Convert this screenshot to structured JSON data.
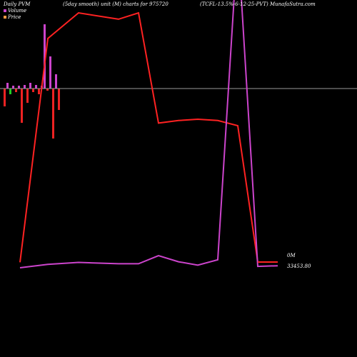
{
  "header": {
    "left": "Daily PVM",
    "middle": "(5day smooth) unit (M) charts for 975720",
    "right": "(TCFL-13.5%-6-12-25-PVT) MunafaSutra.com"
  },
  "legend": {
    "volume_label": "Volume",
    "volume_color": "#cc44cc",
    "price_label": "Price",
    "price_color": "#ff9944"
  },
  "labels": {
    "volume_end": "0M",
    "price_end": "33453.80"
  },
  "colors": {
    "background": "#000000",
    "volume_line": "#cc44cc",
    "price_line": "#ff2222",
    "baseline": "#9a9a9a",
    "bar_up": "#cc44cc",
    "bar_down": "#ee2222",
    "bar_green": "#22cc22"
  },
  "chart_data": {
    "type": "line",
    "grid": false,
    "legend_position": "top-left",
    "series": [
      {
        "name": "Price",
        "values": [
          33453.8,
          35200,
          35400,
          35350,
          35400,
          34540,
          34560,
          34570,
          34560,
          34520,
          33456,
          33456
        ]
      },
      {
        "name": "Volume",
        "values": [
          0,
          0.05,
          0.08,
          0.06,
          0.06,
          0.18,
          0.09,
          0.04,
          0.12,
          4.9,
          0.02,
          0.03
        ]
      }
    ],
    "bars": [
      {
        "type": "down",
        "value": -0.25
      },
      {
        "type": "up",
        "value": 0.08
      },
      {
        "type": "green",
        "value": -0.08
      },
      {
        "type": "up",
        "value": 0.04
      },
      {
        "type": "down",
        "value": -0.05
      },
      {
        "type": "up",
        "value": 0.04
      },
      {
        "type": "down",
        "value": -0.48
      },
      {
        "type": "up",
        "value": 0.05
      },
      {
        "type": "down",
        "value": -0.2
      },
      {
        "type": "up",
        "value": 0.08
      },
      {
        "type": "down",
        "value": -0.05
      },
      {
        "type": "up",
        "value": 0.05
      },
      {
        "type": "down",
        "value": -0.08
      },
      {
        "type": "up",
        "value": 0.04
      },
      {
        "type": "up",
        "value": 0.9
      },
      {
        "type": "down",
        "value": -0.03
      },
      {
        "type": "up",
        "value": 0.45
      },
      {
        "type": "down",
        "value": -0.7
      },
      {
        "type": "up",
        "value": 0.2
      },
      {
        "type": "down",
        "value": -0.3
      }
    ]
  }
}
